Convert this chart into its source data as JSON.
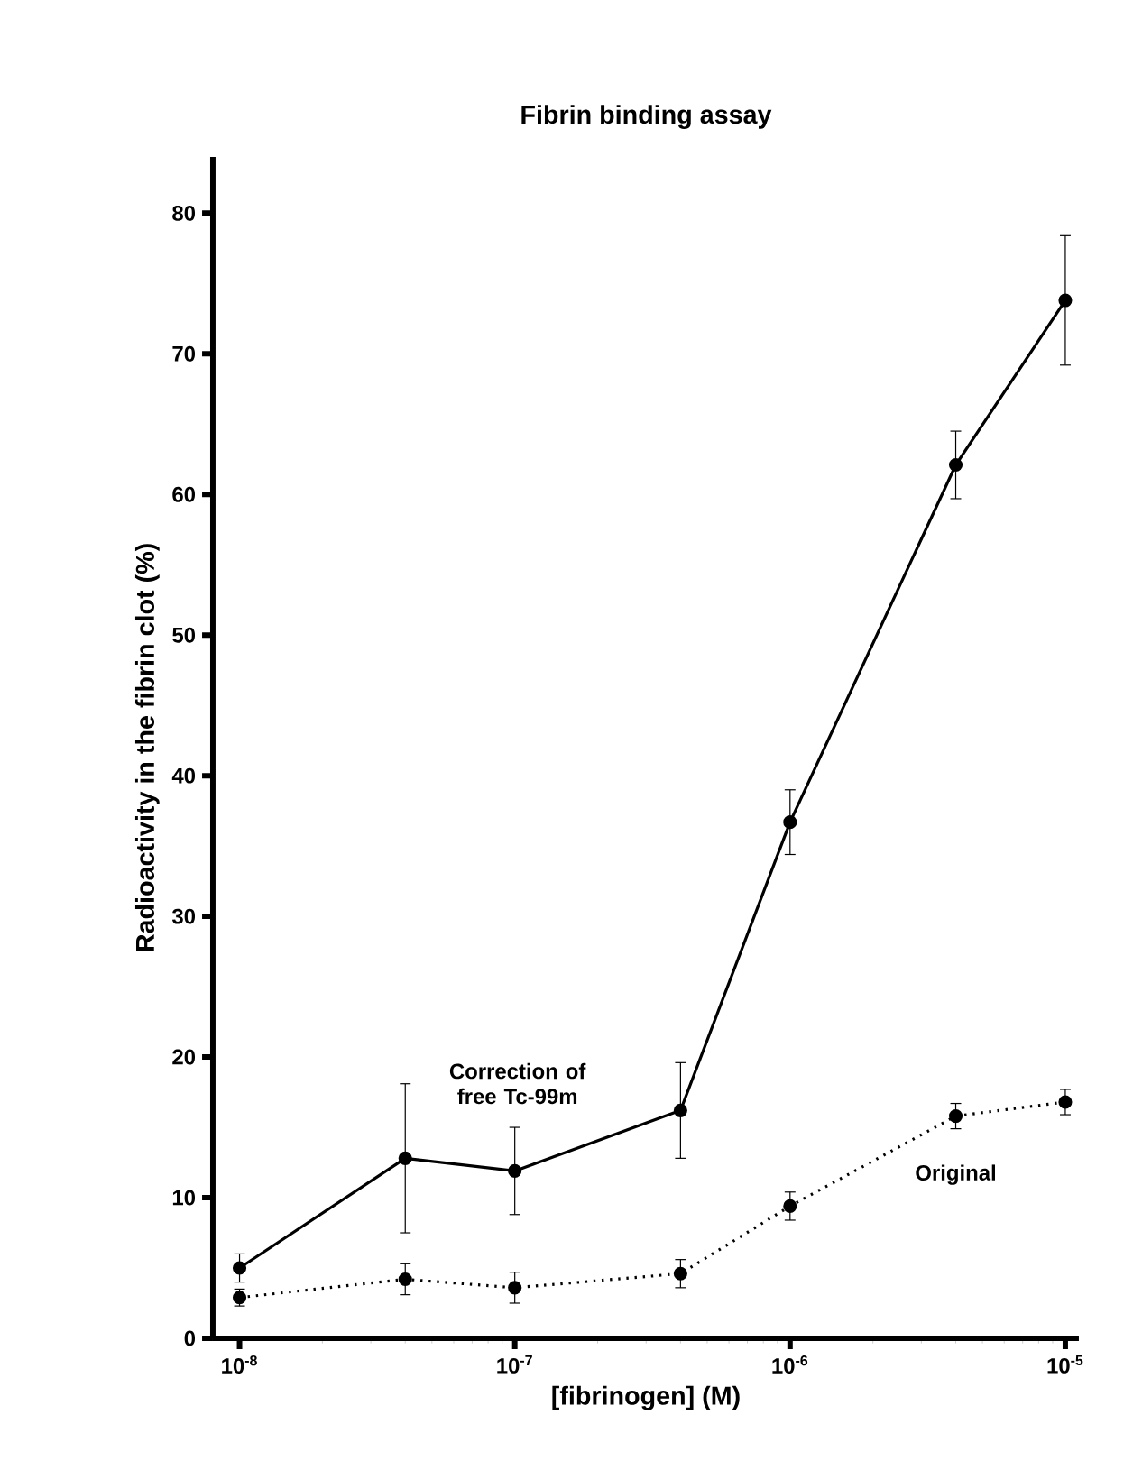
{
  "chart_data": {
    "type": "line",
    "title": "Fibrin binding assay",
    "xlabel": "[fibrinogen]  (M)",
    "ylabel": "Radioactivity in the fibrin clot (%)",
    "log": "x",
    "x": [
      1e-08,
      4e-08,
      1e-07,
      4e-07,
      1e-06,
      4e-06,
      1e-05
    ],
    "xlim": [
      8e-09,
      1.12e-05
    ],
    "ylim": [
      0,
      84
    ],
    "xticks": [
      {
        "value": 1e-08,
        "label": "10$^{-8}$"
      },
      {
        "value": 1e-07,
        "label": "10$^{-7}$"
      },
      {
        "value": 1e-06,
        "label": "10$^{-6}$"
      },
      {
        "value": 1e-05,
        "label": "10$^{-5}$"
      }
    ],
    "yticks": [
      0,
      10,
      20,
      30,
      40,
      50,
      60,
      70,
      80
    ],
    "grid": false,
    "legend": false,
    "marker": "circle",
    "series": [
      {
        "name": "Correction of free Tc-99m",
        "color": "#000000",
        "line_style": "solid",
        "values": [
          5.0,
          12.8,
          11.9,
          16.2,
          36.7,
          62.1,
          73.8
        ],
        "errors": [
          1.0,
          5.3,
          3.1,
          3.4,
          2.3,
          2.4,
          4.6
        ]
      },
      {
        "name": "Original",
        "color": "#000000",
        "line_style": "dotted",
        "values": [
          2.9,
          4.2,
          3.6,
          4.6,
          9.4,
          15.8,
          16.8
        ],
        "errors": [
          0.6,
          1.1,
          1.1,
          1.0,
          1.0,
          0.9,
          0.9
        ]
      }
    ]
  }
}
